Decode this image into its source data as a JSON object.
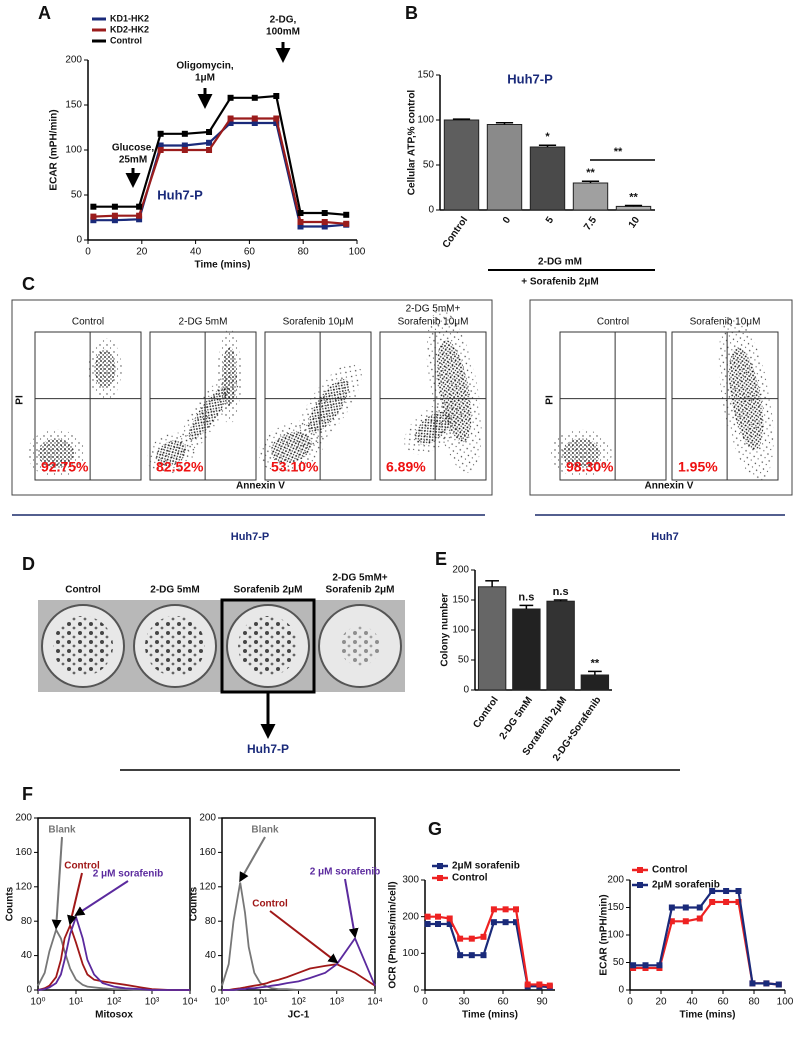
{
  "chart_data": [
    {
      "type": "line",
      "panel": "A",
      "title": "Huh7-P",
      "xlabel": "Time (mins)",
      "ylabel": "ECAR (mPH/min)",
      "x": [
        2,
        10,
        19,
        27,
        36,
        45,
        53,
        62,
        70,
        79,
        88,
        96
      ],
      "series": [
        {
          "name": "KD1-HK2",
          "color": "#1a2a7a",
          "values": [
            22,
            22,
            23,
            105,
            105,
            108,
            130,
            130,
            130,
            15,
            15,
            17
          ]
        },
        {
          "name": "KD2-HK2",
          "color": "#9b1c1c",
          "values": [
            26,
            27,
            27,
            100,
            100,
            100,
            135,
            135,
            135,
            20,
            20,
            18
          ]
        },
        {
          "name": "Control",
          "color": "#000000",
          "values": [
            37,
            37,
            37,
            118,
            118,
            120,
            158,
            158,
            160,
            30,
            30,
            28
          ]
        }
      ],
      "xlim": [
        0,
        100
      ],
      "xticks": [
        0,
        20,
        40,
        60,
        80,
        100
      ],
      "ylim": [
        0,
        200
      ],
      "yticks": [
        0,
        50,
        100,
        150,
        200
      ],
      "annotations": [
        [
          "Glucose,",
          "25mM"
        ],
        [
          "Oligomycin,",
          "1μM"
        ],
        [
          "2-DG,",
          "100mM"
        ]
      ]
    },
    {
      "type": "bar",
      "panel": "B",
      "title": "Huh7-P",
      "ylabel": "Cellular ATP,% control",
      "categories": [
        "Control",
        "0",
        "5",
        "7.5",
        "10"
      ],
      "values": [
        100,
        95,
        70,
        30,
        4
      ],
      "errors": [
        1,
        2,
        2,
        2,
        1
      ],
      "colors": [
        "#5e5e5e",
        "#8a8a8a",
        "#4a4a4a",
        "#a0a0a0",
        "#b0b0b0"
      ],
      "stars": [
        null,
        null,
        "*",
        "**",
        "**"
      ],
      "comparison_label": "**",
      "group_label": "2-DG mM",
      "treatment": "+ Sorafenib 2μM",
      "ylim": [
        0,
        150
      ],
      "yticks": [
        0,
        50,
        100,
        150
      ]
    },
    {
      "type": "bar",
      "panel": "E",
      "ylabel": "Colony number",
      "categories": [
        "Control",
        "2-DG 5mM",
        "Sorafenib 2μM",
        "2-DG+Sorafenib"
      ],
      "values": [
        172,
        135,
        148,
        25
      ],
      "errors": [
        10,
        6,
        2,
        6
      ],
      "colors": [
        "#666666",
        "#222222",
        "#333333",
        "#222222"
      ],
      "stars": [
        null,
        "n.s",
        "n.s",
        "**"
      ],
      "ylim": [
        0,
        200
      ],
      "yticks": [
        0,
        50,
        100,
        150,
        200
      ]
    },
    {
      "type": "line",
      "panel": "F",
      "xscale": "log",
      "xlabel": "Mitosox",
      "ylabel": "Counts",
      "x": [
        1,
        1.5,
        2,
        3,
        4,
        5,
        7,
        10,
        15,
        20,
        30,
        50,
        100,
        200,
        500,
        1000,
        3000,
        10000
      ],
      "series": [
        {
          "name": "Blank",
          "color": "#777777",
          "values": [
            5,
            20,
            45,
            70,
            60,
            45,
            25,
            12,
            6,
            4,
            3,
            2,
            1,
            1,
            0,
            0,
            0,
            0
          ]
        },
        {
          "name": "Control",
          "color": "#a01818",
          "values": [
            0,
            2,
            5,
            15,
            35,
            60,
            75,
            55,
            30,
            18,
            12,
            10,
            8,
            6,
            3,
            1,
            0,
            0
          ]
        },
        {
          "name": "2 μM sorafenib",
          "color": "#5b2a9e",
          "values": [
            0,
            1,
            3,
            8,
            18,
            35,
            65,
            85,
            60,
            35,
            18,
            8,
            4,
            2,
            1,
            0,
            0,
            0
          ]
        }
      ],
      "xlim": [
        1,
        10000
      ],
      "xticks": [
        {
          "value": 1,
          "label": "10⁰"
        },
        {
          "value": 10,
          "label": "10¹"
        },
        {
          "value": 100,
          "label": "10²"
        },
        {
          "value": 1000,
          "label": "10³"
        },
        {
          "value": 10000,
          "label": "10⁴"
        }
      ],
      "ylim": [
        0,
        200
      ],
      "yticks": [
        0,
        40,
        80,
        120,
        160,
        200
      ]
    },
    {
      "type": "line",
      "xscale": "log",
      "xlabel": "JC-1",
      "ylabel": "Counts",
      "x": [
        1,
        1.5,
        2,
        3,
        4,
        5,
        7,
        10,
        15,
        20,
        30,
        50,
        100,
        200,
        500,
        1000,
        3000,
        10000
      ],
      "series": [
        {
          "name": "Blank",
          "color": "#777777",
          "values": [
            5,
            30,
            80,
            125,
            90,
            50,
            20,
            8,
            4,
            2,
            1,
            1,
            0,
            0,
            0,
            0,
            0,
            0
          ]
        },
        {
          "name": "Control",
          "color": "#a01818",
          "values": [
            0,
            0,
            1,
            2,
            3,
            4,
            5,
            6,
            8,
            10,
            12,
            15,
            20,
            25,
            28,
            30,
            20,
            5
          ]
        },
        {
          "name": "2 μM sorafenib",
          "color": "#5b2a9e",
          "values": [
            0,
            0,
            0,
            1,
            1,
            2,
            2,
            3,
            4,
            5,
            6,
            8,
            10,
            14,
            20,
            30,
            60,
            5
          ]
        }
      ],
      "xlim": [
        1,
        10000
      ],
      "xticks": [
        {
          "value": 1,
          "label": "10⁰"
        },
        {
          "value": 10,
          "label": "10¹"
        },
        {
          "value": 100,
          "label": "10²"
        },
        {
          "value": 1000,
          "label": "10³"
        },
        {
          "value": 10000,
          "label": "10⁴"
        }
      ],
      "ylim": [
        0,
        200
      ],
      "yticks": [
        0,
        40,
        80,
        120,
        160,
        200
      ]
    },
    {
      "type": "line",
      "panel": "G",
      "xlabel": "Time (mins)",
      "ylabel": "OCR (Pmoles/min/cell)",
      "x": [
        2,
        10,
        19,
        27,
        36,
        45,
        53,
        62,
        70,
        79,
        88,
        96
      ],
      "series": [
        {
          "name": "2μM sorafenib",
          "color": "#1a2a7a",
          "values": [
            180,
            180,
            180,
            95,
            95,
            95,
            185,
            185,
            185,
            10,
            10,
            8
          ]
        },
        {
          "name": "Control",
          "color": "#ee2222",
          "values": [
            200,
            200,
            195,
            140,
            140,
            145,
            220,
            220,
            220,
            15,
            15,
            12
          ]
        }
      ],
      "xlim": [
        0,
        100
      ],
      "xticks": [
        0,
        30,
        60,
        90
      ],
      "ylim": [
        0,
        300
      ],
      "yticks": [
        0,
        100,
        200,
        300
      ]
    },
    {
      "type": "line",
      "xlabel": "Time (mins)",
      "ylabel": "ECAR (mPH/min)",
      "x": [
        2,
        10,
        19,
        27,
        36,
        45,
        53,
        62,
        70,
        79,
        88,
        96
      ],
      "series": [
        {
          "name": "Control",
          "color": "#ee2222",
          "values": [
            40,
            40,
            40,
            125,
            125,
            130,
            160,
            160,
            160,
            12,
            12,
            10
          ]
        },
        {
          "name": "2μM sorafenib",
          "color": "#1a2a7a",
          "values": [
            45,
            45,
            45,
            150,
            150,
            150,
            180,
            180,
            180,
            12,
            12,
            10
          ]
        }
      ],
      "xlim": [
        0,
        100
      ],
      "xticks": [
        0,
        20,
        40,
        60,
        80,
        100
      ],
      "ylim": [
        0,
        200
      ],
      "yticks": [
        0,
        50,
        100,
        150,
        200
      ]
    }
  ],
  "flow": {
    "panel": "C",
    "groups": [
      {
        "name": "Huh7-P",
        "xlabel": "Annexin V",
        "ylabel": "PI",
        "plots": [
          {
            "title": [
              "Control"
            ],
            "percent": "92.75%"
          },
          {
            "title": [
              "2-DG 5mM"
            ],
            "percent": "82.52%"
          },
          {
            "title": [
              "Sorafenib 10μM"
            ],
            "percent": "53.10%"
          },
          {
            "title": [
              "2-DG 5mM+",
              "Sorafenib 10μM"
            ],
            "percent": "6.89%"
          }
        ]
      },
      {
        "name": "Huh7",
        "xlabel": "Annexin V",
        "ylabel": "PI",
        "plots": [
          {
            "title": [
              "Control"
            ],
            "percent": "98.30%"
          },
          {
            "title": [
              "Sorafenib 10μM"
            ],
            "percent": "1.95%"
          }
        ]
      }
    ]
  },
  "colony": {
    "panel": "D",
    "labels": [
      [
        "Control"
      ],
      [
        "2-DG 5mM"
      ],
      [
        "Sorafenib 2μM"
      ],
      [
        "2-DG 5mM+",
        "Sorafenib 2μM"
      ]
    ],
    "cell_line": "Huh7-P"
  }
}
